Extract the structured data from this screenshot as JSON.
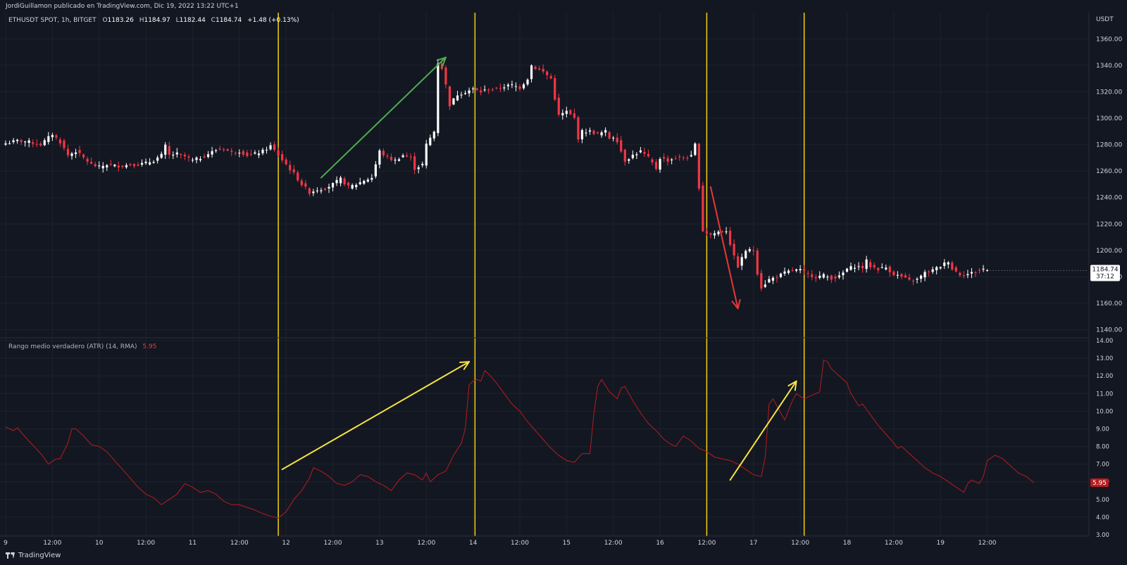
{
  "header": {
    "publisher_line": "JordiGuillamon publicado en TradingView.com, Dic 19, 2022 13:22 UTC+1"
  },
  "footer": {
    "brand": "TradingView"
  },
  "colors": {
    "background": "#131722",
    "grid": "#1e222d",
    "text": "#d1d4dc",
    "candle_up": "#ffffff",
    "candle_down": "#f23645",
    "atr_line": "#b71c1c",
    "vertical_marker": "#f5d10f",
    "arrow_green": "#4caf50",
    "arrow_red": "#e53935",
    "arrow_yellow": "#f5e342"
  },
  "chart_data": [
    {
      "type": "candlestick",
      "legend": {
        "symbol": "ETHUSDT SPOT, 1h, BITGET",
        "o_label": "O",
        "o": "1183.26",
        "h_label": "H",
        "h": "1184.97",
        "l_label": "L",
        "l": "1182.44",
        "c_label": "C",
        "c": "1184.74",
        "change": "+1.48 (+0.13%)"
      },
      "currency": "USDT",
      "y_ticks": [
        "1360.00",
        "1340.00",
        "1320.00",
        "1300.00",
        "1280.00",
        "1260.00",
        "1240.00",
        "1220.00",
        "1200.00",
        "1180.00",
        "1160.00",
        "1140.00"
      ],
      "ylim": [
        1135,
        1366
      ],
      "x_ticks": [
        {
          "t": 0,
          "label": "9"
        },
        {
          "t": 12,
          "label": "12:00"
        },
        {
          "t": 24,
          "label": "10"
        },
        {
          "t": 36,
          "label": "12:00"
        },
        {
          "t": 48,
          "label": "11"
        },
        {
          "t": 60,
          "label": "12:00"
        },
        {
          "t": 72,
          "label": "12"
        },
        {
          "t": 84,
          "label": "12:00"
        },
        {
          "t": 96,
          "label": "13"
        },
        {
          "t": 108,
          "label": "12:00"
        },
        {
          "t": 120,
          "label": "14"
        },
        {
          "t": 132,
          "label": "12:00"
        },
        {
          "t": 144,
          "label": "15"
        },
        {
          "t": 156,
          "label": "12:00"
        },
        {
          "t": 168,
          "label": "16"
        },
        {
          "t": 180,
          "label": "12:00"
        },
        {
          "t": 192,
          "label": "17"
        },
        {
          "t": 204,
          "label": "12:00"
        },
        {
          "t": 216,
          "label": "18"
        },
        {
          "t": 228,
          "label": "12:00"
        },
        {
          "t": 240,
          "label": "19"
        },
        {
          "t": 252,
          "label": "12:00"
        }
      ],
      "last_price": "1184.74",
      "countdown": "37:12",
      "close_anchors": [
        [
          0,
          1281
        ],
        [
          3,
          1283
        ],
        [
          6,
          1282
        ],
        [
          9,
          1280
        ],
        [
          12,
          1288
        ],
        [
          14,
          1282
        ],
        [
          16,
          1272
        ],
        [
          18,
          1275
        ],
        [
          20,
          1270
        ],
        [
          22,
          1265
        ],
        [
          24,
          1263
        ],
        [
          26,
          1265
        ],
        [
          28,
          1264
        ],
        [
          30,
          1264
        ],
        [
          32,
          1265
        ],
        [
          34,
          1265
        ],
        [
          36,
          1266
        ],
        [
          38,
          1268
        ],
        [
          40,
          1272
        ],
        [
          41,
          1279
        ],
        [
          42,
          1272
        ],
        [
          44,
          1273
        ],
        [
          46,
          1271
        ],
        [
          48,
          1268
        ],
        [
          50,
          1270
        ],
        [
          52,
          1273
        ],
        [
          54,
          1276
        ],
        [
          56,
          1277
        ],
        [
          58,
          1274
        ],
        [
          60,
          1275
        ],
        [
          62,
          1272
        ],
        [
          64,
          1273
        ],
        [
          66,
          1275
        ],
        [
          68,
          1279
        ],
        [
          70,
          1272
        ],
        [
          72,
          1265
        ],
        [
          74,
          1258
        ],
        [
          76,
          1250
        ],
        [
          78,
          1244
        ],
        [
          80,
          1246
        ],
        [
          82,
          1247
        ],
        [
          84,
          1250
        ],
        [
          86,
          1254
        ],
        [
          88,
          1248
        ],
        [
          90,
          1250
        ],
        [
          92,
          1253
        ],
        [
          94,
          1255
        ],
        [
          95,
          1265
        ],
        [
          96,
          1275
        ],
        [
          98,
          1270
        ],
        [
          100,
          1268
        ],
        [
          102,
          1272
        ],
        [
          104,
          1270
        ],
        [
          105,
          1262
        ],
        [
          107,
          1265
        ],
        [
          108,
          1280
        ],
        [
          110,
          1290
        ],
        [
          111,
          1342
        ],
        [
          112,
          1338
        ],
        [
          113,
          1325
        ],
        [
          114,
          1310
        ],
        [
          116,
          1318
        ],
        [
          118,
          1320
        ],
        [
          120,
          1322
        ],
        [
          122,
          1320
        ],
        [
          124,
          1322
        ],
        [
          126,
          1322
        ],
        [
          128,
          1324
        ],
        [
          130,
          1325
        ],
        [
          132,
          1323
        ],
        [
          134,
          1330
        ],
        [
          135,
          1340
        ],
        [
          136,
          1338
        ],
        [
          138,
          1335
        ],
        [
          140,
          1330
        ],
        [
          141,
          1315
        ],
        [
          142,
          1302
        ],
        [
          144,
          1305
        ],
        [
          146,
          1300
        ],
        [
          147,
          1285
        ],
        [
          148,
          1290
        ],
        [
          150,
          1290
        ],
        [
          152,
          1288
        ],
        [
          154,
          1290
        ],
        [
          155,
          1285
        ],
        [
          156,
          1286
        ],
        [
          157,
          1283
        ],
        [
          158,
          1275
        ],
        [
          159,
          1268
        ],
        [
          161,
          1272
        ],
        [
          163,
          1275
        ],
        [
          165,
          1270
        ],
        [
          167,
          1262
        ],
        [
          168,
          1270
        ],
        [
          170,
          1268
        ],
        [
          172,
          1270
        ],
        [
          174,
          1270
        ],
        [
          176,
          1271
        ],
        [
          177,
          1280
        ],
        [
          178,
          1248
        ],
        [
          179,
          1215
        ],
        [
          181,
          1212
        ],
        [
          183,
          1214
        ],
        [
          185,
          1215
        ],
        [
          186,
          1205
        ],
        [
          187,
          1195
        ],
        [
          188,
          1188
        ],
        [
          190,
          1200
        ],
        [
          192,
          1200
        ],
        [
          193,
          1183
        ],
        [
          194,
          1172
        ],
        [
          196,
          1178
        ],
        [
          198,
          1180
        ],
        [
          200,
          1183
        ],
        [
          202,
          1185
        ],
        [
          204,
          1185
        ],
        [
          206,
          1182
        ],
        [
          208,
          1180
        ],
        [
          210,
          1181
        ],
        [
          212,
          1179
        ],
        [
          214,
          1180
        ],
        [
          216,
          1186
        ],
        [
          218,
          1188
        ],
        [
          220,
          1187
        ],
        [
          221,
          1192
        ],
        [
          222,
          1188
        ],
        [
          224,
          1186
        ],
        [
          226,
          1187
        ],
        [
          228,
          1182
        ],
        [
          230,
          1180
        ],
        [
          232,
          1177
        ],
        [
          234,
          1178
        ],
        [
          236,
          1183
        ],
        [
          238,
          1185
        ],
        [
          240,
          1188
        ],
        [
          242,
          1192
        ],
        [
          243,
          1186
        ],
        [
          245,
          1182
        ],
        [
          247,
          1182
        ],
        [
          249,
          1184
        ],
        [
          251,
          1186
        ],
        [
          252,
          1185
        ]
      ]
    },
    {
      "type": "line",
      "legend": {
        "name": "Rango medio verdadero (ATR) (14, RMA)",
        "value": "5.95"
      },
      "y_ticks": [
        "14.00",
        "13.00",
        "12.00",
        "11.00",
        "10.00",
        "9.00",
        "8.00",
        "7.00",
        "6.00",
        "5.00",
        "4.00",
        "3.00"
      ],
      "ylim": [
        3,
        14
      ],
      "last_value": "5.95",
      "points": [
        [
          0,
          9.1
        ],
        [
          2,
          8.9
        ],
        [
          3,
          9.05
        ],
        [
          6,
          8.3
        ],
        [
          9,
          7.6
        ],
        [
          11,
          7.0
        ],
        [
          13,
          7.3
        ],
        [
          14,
          7.3
        ],
        [
          16,
          8.2
        ],
        [
          17,
          9.0
        ],
        [
          18,
          9.0
        ],
        [
          20,
          8.6
        ],
        [
          22,
          8.1
        ],
        [
          24,
          8.0
        ],
        [
          26,
          7.7
        ],
        [
          28,
          7.2
        ],
        [
          30,
          6.7
        ],
        [
          32,
          6.2
        ],
        [
          34,
          5.7
        ],
        [
          36,
          5.3
        ],
        [
          38,
          5.1
        ],
        [
          40,
          4.7
        ],
        [
          42,
          5.0
        ],
        [
          44,
          5.3
        ],
        [
          46,
          5.9
        ],
        [
          48,
          5.7
        ],
        [
          50,
          5.4
        ],
        [
          52,
          5.5
        ],
        [
          54,
          5.3
        ],
        [
          56,
          4.9
        ],
        [
          58,
          4.7
        ],
        [
          60,
          4.7
        ],
        [
          62,
          4.55
        ],
        [
          64,
          4.4
        ],
        [
          66,
          4.2
        ],
        [
          68,
          4.05
        ],
        [
          70,
          3.95
        ],
        [
          72,
          4.3
        ],
        [
          74,
          5.0
        ],
        [
          76,
          5.5
        ],
        [
          78,
          6.2
        ],
        [
          79,
          6.8
        ],
        [
          81,
          6.6
        ],
        [
          83,
          6.3
        ],
        [
          85,
          5.9
        ],
        [
          87,
          5.8
        ],
        [
          89,
          6.0
        ],
        [
          91,
          6.4
        ],
        [
          93,
          6.3
        ],
        [
          95,
          6.0
        ],
        [
          97,
          5.8
        ],
        [
          99,
          5.5
        ],
        [
          101,
          6.1
        ],
        [
          103,
          6.5
        ],
        [
          105,
          6.4
        ],
        [
          107,
          6.1
        ],
        [
          108,
          6.5
        ],
        [
          109,
          6.0
        ],
        [
          111,
          6.4
        ],
        [
          113,
          6.6
        ],
        [
          115,
          7.5
        ],
        [
          117,
          8.2
        ],
        [
          118,
          9.0
        ],
        [
          119,
          11.5
        ],
        [
          120,
          11.7
        ],
        [
          121,
          11.8
        ],
        [
          122,
          11.7
        ],
        [
          123,
          12.3
        ],
        [
          124,
          12.1
        ],
        [
          126,
          11.6
        ],
        [
          128,
          11.0
        ],
        [
          130,
          10.4
        ],
        [
          132,
          10.0
        ],
        [
          134,
          9.4
        ],
        [
          136,
          8.9
        ],
        [
          138,
          8.4
        ],
        [
          140,
          7.9
        ],
        [
          142,
          7.5
        ],
        [
          144,
          7.2
        ],
        [
          146,
          7.1
        ],
        [
          148,
          7.6
        ],
        [
          150,
          7.6
        ],
        [
          151,
          9.8
        ],
        [
          152,
          11.4
        ],
        [
          153,
          11.8
        ],
        [
          155,
          11.1
        ],
        [
          157,
          10.7
        ],
        [
          158,
          11.3
        ],
        [
          159,
          11.4
        ],
        [
          161,
          10.6
        ],
        [
          163,
          9.9
        ],
        [
          165,
          9.3
        ],
        [
          167,
          8.9
        ],
        [
          169,
          8.4
        ],
        [
          171,
          8.1
        ],
        [
          172,
          8.0
        ],
        [
          174,
          8.6
        ],
        [
          176,
          8.3
        ],
        [
          178,
          7.9
        ],
        [
          180,
          7.7
        ],
        [
          182,
          7.4
        ],
        [
          184,
          7.3
        ],
        [
          186,
          7.2
        ],
        [
          188,
          7.0
        ],
        [
          190,
          6.7
        ],
        [
          192,
          6.4
        ],
        [
          194,
          6.3
        ],
        [
          195,
          7.4
        ],
        [
          196,
          10.4
        ],
        [
          197,
          10.7
        ],
        [
          199,
          9.9
        ],
        [
          200,
          9.5
        ],
        [
          202,
          10.6
        ],
        [
          203,
          11.0
        ],
        [
          205,
          10.7
        ],
        [
          207,
          10.9
        ],
        [
          209,
          11.1
        ],
        [
          210,
          12.9
        ],
        [
          211,
          12.8
        ],
        [
          212,
          12.4
        ],
        [
          214,
          12.0
        ],
        [
          216,
          11.6
        ],
        [
          217,
          11.0
        ],
        [
          219,
          10.3
        ],
        [
          220,
          10.4
        ],
        [
          222,
          9.8
        ],
        [
          224,
          9.2
        ],
        [
          226,
          8.7
        ],
        [
          228,
          8.2
        ],
        [
          229,
          7.9
        ],
        [
          230,
          8.0
        ],
        [
          232,
          7.6
        ],
        [
          234,
          7.2
        ],
        [
          236,
          6.8
        ],
        [
          238,
          6.5
        ],
        [
          240,
          6.3
        ],
        [
          242,
          6.0
        ],
        [
          244,
          5.7
        ],
        [
          246,
          5.4
        ],
        [
          247,
          5.9
        ],
        [
          248,
          6.1
        ],
        [
          250,
          5.9
        ],
        [
          251,
          6.3
        ],
        [
          252,
          7.2
        ],
        [
          254,
          7.5
        ],
        [
          256,
          7.3
        ],
        [
          258,
          6.9
        ],
        [
          260,
          6.5
        ],
        [
          262,
          6.3
        ],
        [
          264,
          5.95
        ]
      ]
    }
  ],
  "annotations": {
    "vertical_markers_t": [
      70,
      120.5,
      180,
      205
    ],
    "arrows": [
      {
        "pane": "price",
        "color": "arrow_green",
        "from": [
          81,
          1255
        ],
        "to": [
          113,
          1346
        ]
      },
      {
        "pane": "price",
        "color": "arrow_red",
        "from": [
          181,
          1248
        ],
        "to": [
          188,
          1156
        ]
      },
      {
        "pane": "atr",
        "color": "arrow_yellow",
        "from": [
          71,
          6.7
        ],
        "to": [
          119,
          12.8
        ]
      },
      {
        "pane": "atr",
        "color": "arrow_yellow",
        "from": [
          186,
          6.1
        ],
        "to": [
          203,
          11.7
        ]
      }
    ]
  }
}
